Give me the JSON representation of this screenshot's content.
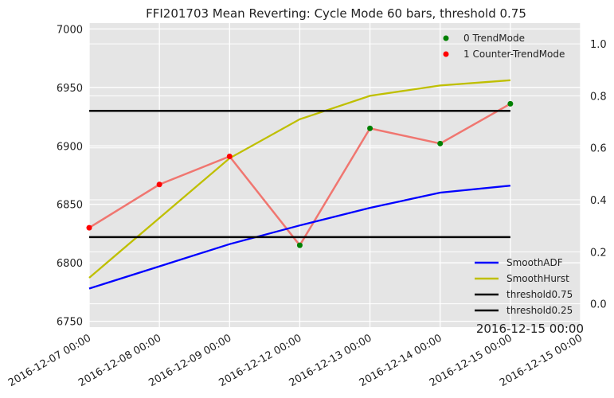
{
  "chart_data": {
    "type": "line",
    "title": "FFI201703 Mean Reverting: Cycle Mode 60 bars, threshold 0.75",
    "grid": true,
    "background": "#e5e5e5",
    "x_tick_labels": [
      "2016-12-07 00:00",
      "2016-12-08 00:00",
      "2016-12-09 00:00",
      "2016-12-12 00:00",
      "2016-12-13 00:00",
      "2016-12-14 00:00",
      "2016-12-15 00:00",
      "2016-12-15 00:00"
    ],
    "x_offset_label": "2016-12-15 00:00",
    "left_axis": {
      "ylim": [
        6745,
        7005
      ],
      "ticks": [
        "6750",
        "6800",
        "6850",
        "6900",
        "6950",
        "7000"
      ]
    },
    "right_axis": {
      "ylim": [
        -0.09,
        1.08
      ],
      "ticks": [
        "0.0",
        "0.2",
        "0.4",
        "0.6",
        "0.8",
        "1.0"
      ]
    },
    "price_series": {
      "axis": "left",
      "color": "#f07670",
      "values": [
        6830,
        6867,
        6891,
        6815,
        6915,
        6902,
        6936
      ]
    },
    "mode_points": {
      "axis": "left",
      "legend": [
        {
          "label": "0 TrendMode",
          "color": "#008000"
        },
        {
          "label": "1 Counter-TrendMode",
          "color": "#ff0000"
        }
      ],
      "modes": [
        1,
        1,
        1,
        0,
        0,
        0,
        0
      ]
    },
    "series": [
      {
        "name": "SmoothADF",
        "axis": "left",
        "color": "#0000ff",
        "values": [
          6778,
          6797,
          6816,
          6832,
          6847,
          6860,
          6866
        ]
      },
      {
        "name": "SmoothHurst",
        "axis": "right",
        "color": "#bfbf00",
        "values": [
          0.1,
          0.33,
          0.56,
          0.71,
          0.8,
          0.84,
          0.86
        ]
      },
      {
        "name": "threshold0.75",
        "axis": "left",
        "color": "#000000",
        "values": [
          6930,
          6930,
          6930,
          6930,
          6930,
          6930,
          6930
        ]
      },
      {
        "name": "threshold0.25",
        "axis": "left",
        "color": "#000000",
        "values": [
          6822,
          6822,
          6822,
          6822,
          6822,
          6822,
          6822
        ]
      }
    ]
  }
}
